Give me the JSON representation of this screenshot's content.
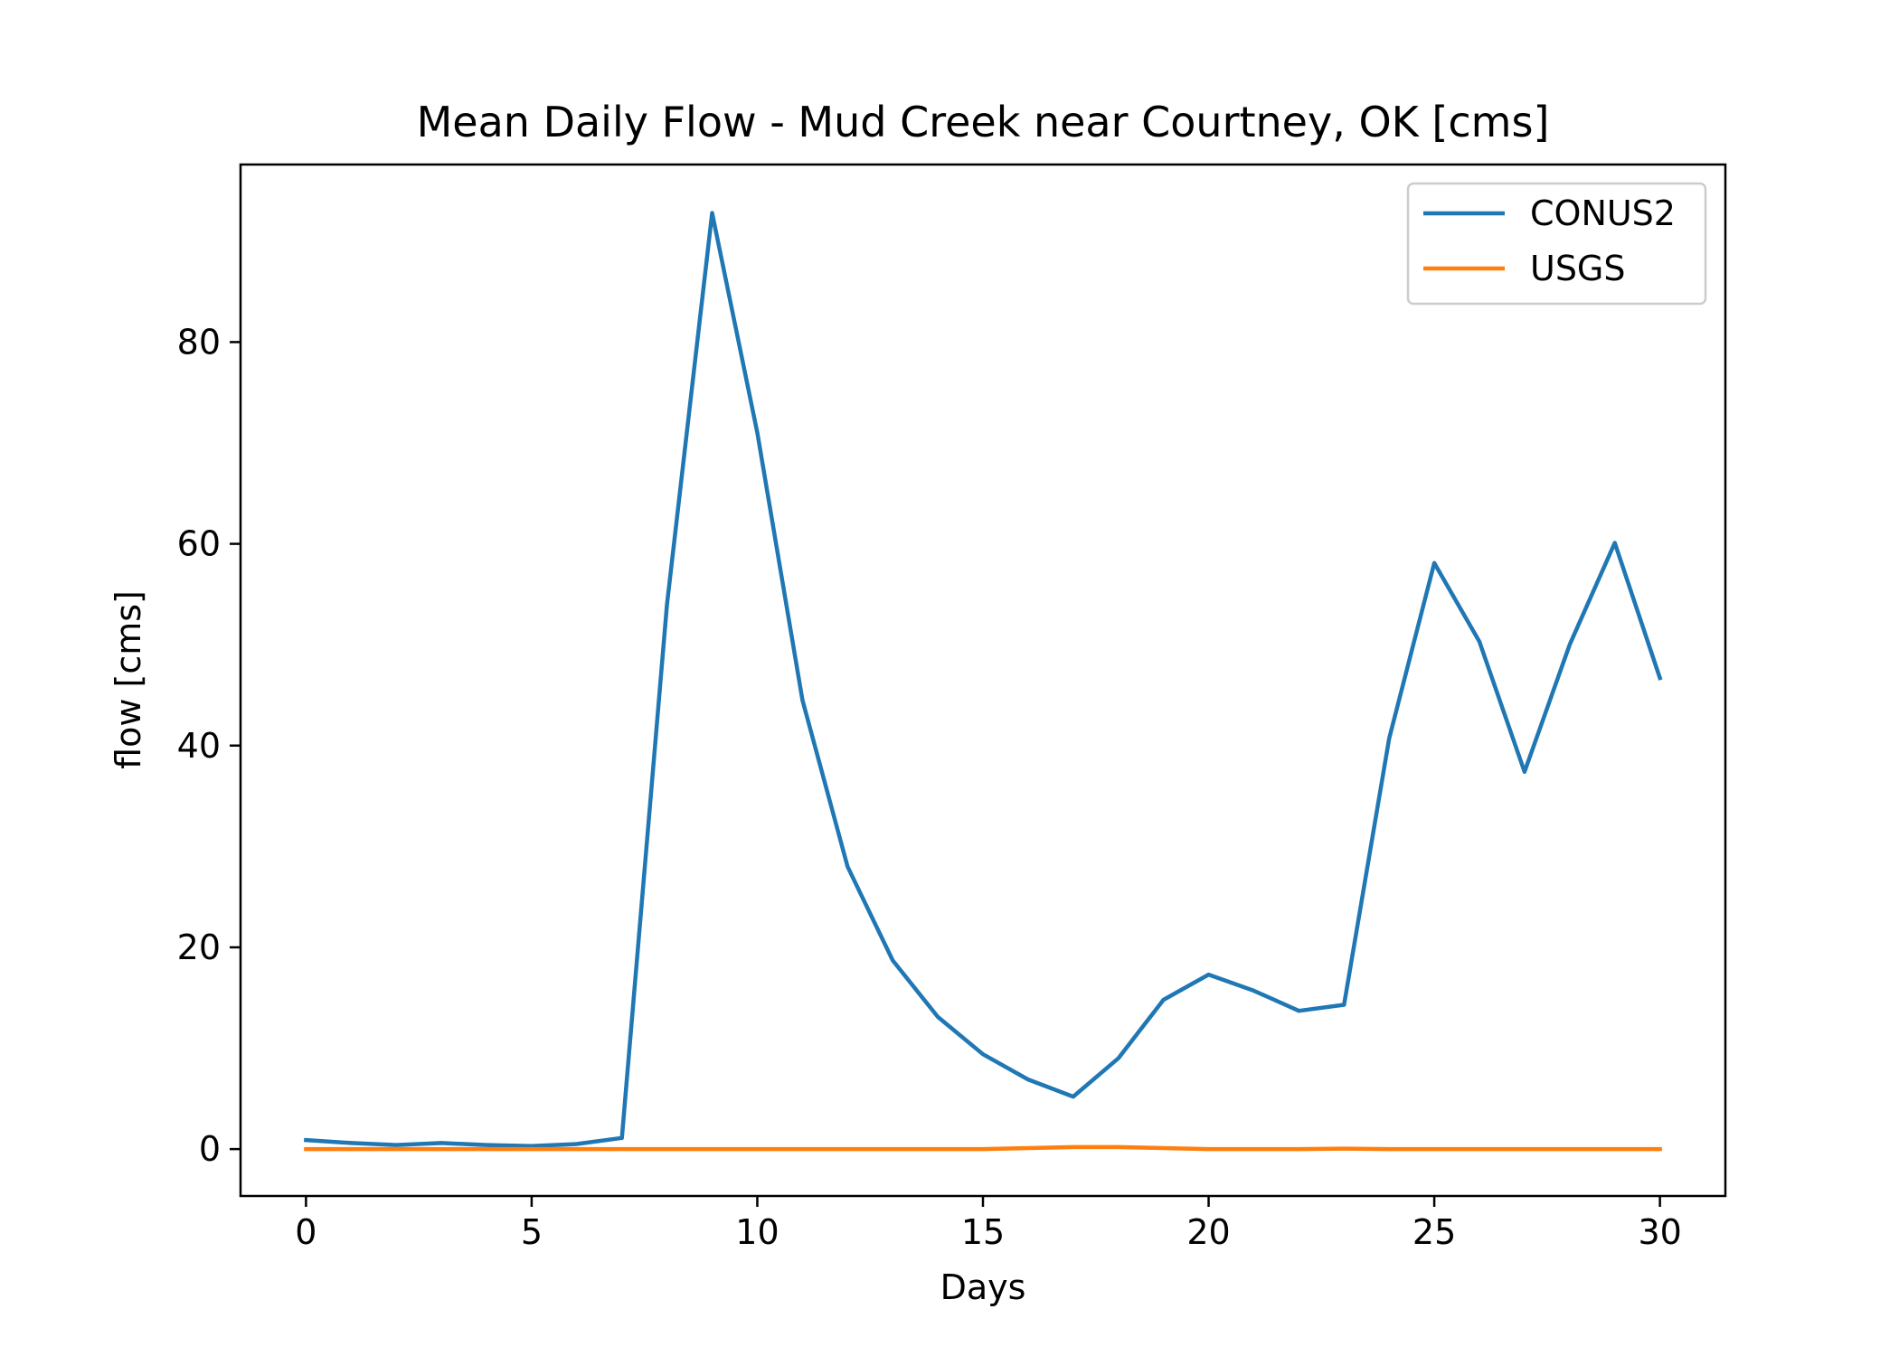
{
  "chart_data": {
    "type": "line",
    "title": "Mean Daily Flow - Mud Creek near Courtney, OK [cms]",
    "xlabel": "Days",
    "ylabel": "flow [cms]",
    "xlim": [
      -1.45,
      31.45
    ],
    "ylim": [
      -4.65,
      97.6
    ],
    "xticks": [
      0,
      5,
      10,
      15,
      20,
      25,
      30
    ],
    "yticks": [
      0,
      20,
      40,
      60,
      80
    ],
    "grid": false,
    "legend_position": "top-right",
    "x": [
      0,
      1,
      2,
      3,
      4,
      5,
      6,
      7,
      8,
      9,
      10,
      11,
      12,
      13,
      14,
      15,
      16,
      17,
      18,
      19,
      20,
      21,
      22,
      23,
      24,
      25,
      26,
      27,
      28,
      29,
      30
    ],
    "series": [
      {
        "name": "CONUS2",
        "color": "#1f77b4",
        "values": [
          0.9,
          0.6,
          0.4,
          0.6,
          0.4,
          0.3,
          0.5,
          1.1,
          54.0,
          92.8,
          71.0,
          44.5,
          28.0,
          18.7,
          13.1,
          9.4,
          6.9,
          5.2,
          9.0,
          14.8,
          17.3,
          15.7,
          13.7,
          14.3,
          40.7,
          58.1,
          50.3,
          37.4,
          50.0,
          60.1,
          46.7
        ]
      },
      {
        "name": "USGS",
        "color": "#ff7f0e",
        "values": [
          0,
          0,
          0,
          0,
          0,
          0,
          0,
          0,
          0,
          0,
          0,
          0,
          0,
          0,
          0,
          0,
          0.1,
          0.2,
          0.2,
          0.1,
          0,
          0,
          0,
          0.05,
          0,
          0,
          0,
          0,
          0,
          0,
          0
        ]
      }
    ]
  }
}
